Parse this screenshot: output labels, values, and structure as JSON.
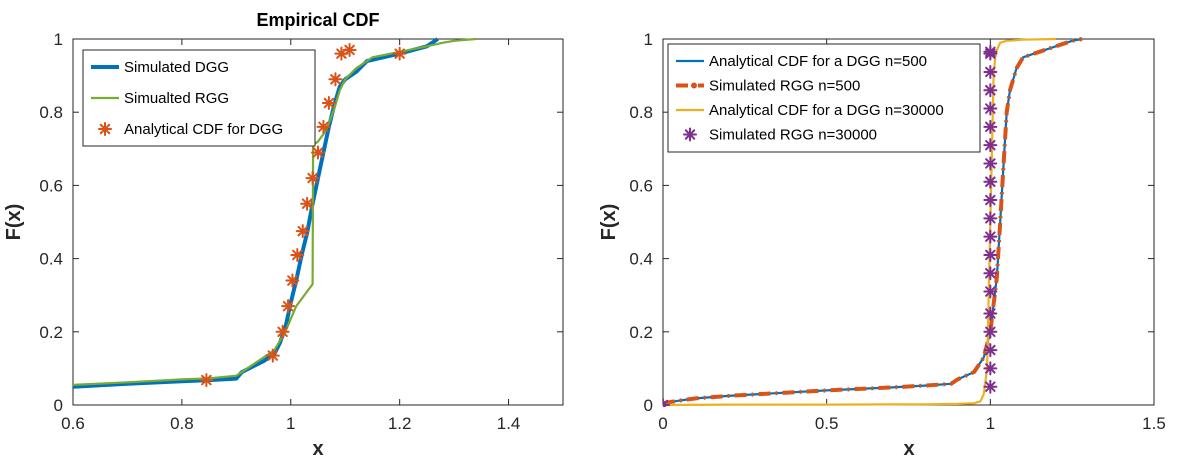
{
  "chart_data": [
    {
      "type": "line",
      "title": "Empirical CDF",
      "xlabel": "x",
      "ylabel": "F(x)",
      "xlim": [
        0.6,
        1.5
      ],
      "ylim": [
        0,
        1
      ],
      "xticks": [
        0.6,
        0.8,
        1,
        1.2,
        1.4
      ],
      "xtick_labels": [
        "0.6",
        "0.8",
        "1",
        "1.2",
        "1.4"
      ],
      "yticks": [
        0,
        0.2,
        0.4,
        0.6,
        0.8,
        1
      ],
      "ytick_labels": [
        "0",
        "0.2",
        "0.4",
        "0.6",
        "0.8",
        "1"
      ],
      "grid": false,
      "legend_position": "top-left",
      "series": [
        {
          "name": "Simulated DGG",
          "color": "#0072BD",
          "style": "thick-line",
          "x": [
            0.6,
            0.7,
            0.8,
            0.85,
            0.9,
            0.91,
            0.95,
            0.97,
            0.98,
            0.99,
            1.0,
            1.01,
            1.02,
            1.03,
            1.04,
            1.05,
            1.06,
            1.07,
            1.08,
            1.09,
            1.1,
            1.12,
            1.14,
            1.2,
            1.25,
            1.27
          ],
          "y": [
            0.05,
            0.058,
            0.065,
            0.068,
            0.072,
            0.09,
            0.12,
            0.14,
            0.17,
            0.21,
            0.28,
            0.34,
            0.41,
            0.47,
            0.55,
            0.62,
            0.69,
            0.76,
            0.82,
            0.87,
            0.89,
            0.91,
            0.94,
            0.96,
            0.98,
            1.0
          ]
        },
        {
          "name": "Simualted RGG",
          "color": "#77AC30",
          "style": "line",
          "x": [
            0.6,
            0.7,
            0.8,
            0.85,
            0.9,
            0.92,
            0.95,
            0.97,
            0.99,
            1.01,
            1.03,
            1.04,
            1.041,
            1.05,
            1.06,
            1.07,
            1.08,
            1.09,
            1.1,
            1.12,
            1.15,
            1.2,
            1.25,
            1.28,
            1.3,
            1.34
          ],
          "y": [
            0.055,
            0.062,
            0.07,
            0.073,
            0.08,
            0.1,
            0.13,
            0.15,
            0.2,
            0.27,
            0.31,
            0.33,
            0.71,
            0.72,
            0.74,
            0.77,
            0.81,
            0.86,
            0.89,
            0.92,
            0.95,
            0.965,
            0.98,
            0.99,
            0.995,
            1.0
          ]
        },
        {
          "name": "Analytical CDF for DGG",
          "color": "#D95319",
          "style": "asterisk-markers",
          "x": [
            0.845,
            0.967,
            0.985,
            0.995,
            1.003,
            1.012,
            1.022,
            1.03,
            1.04,
            1.05,
            1.06,
            1.07,
            1.082,
            1.093,
            1.108,
            1.2
          ],
          "y": [
            0.068,
            0.135,
            0.2,
            0.27,
            0.34,
            0.41,
            0.475,
            0.55,
            0.62,
            0.69,
            0.76,
            0.825,
            0.89,
            0.96,
            0.97,
            0.96
          ]
        }
      ]
    },
    {
      "type": "line",
      "title": "",
      "xlabel": "x",
      "ylabel": "F(x)",
      "xlim": [
        0,
        1.5
      ],
      "ylim": [
        0,
        1
      ],
      "xticks": [
        0,
        0.5,
        1,
        1.5
      ],
      "xtick_labels": [
        "0",
        "0.5",
        "1",
        "1.5"
      ],
      "yticks": [
        0,
        0.2,
        0.4,
        0.6,
        0.8,
        1
      ],
      "ytick_labels": [
        "0",
        "0.2",
        "0.4",
        "0.6",
        "0.8",
        "1"
      ],
      "grid": false,
      "legend_position": "top-left",
      "series": [
        {
          "name": "Analytical CDF for a DGG n=500",
          "color": "#0072BD",
          "style": "line",
          "x": [
            0,
            0.05,
            0.1,
            0.2,
            0.3,
            0.4,
            0.5,
            0.6,
            0.7,
            0.8,
            0.88,
            0.9,
            0.95,
            0.98,
            1.0,
            1.02,
            1.03,
            1.04,
            1.05,
            1.06,
            1.08,
            1.1,
            1.15,
            1.2,
            1.25,
            1.28
          ],
          "y": [
            0.005,
            0.012,
            0.018,
            0.025,
            0.03,
            0.035,
            0.04,
            0.044,
            0.048,
            0.053,
            0.058,
            0.07,
            0.09,
            0.13,
            0.2,
            0.35,
            0.5,
            0.65,
            0.8,
            0.86,
            0.92,
            0.95,
            0.965,
            0.98,
            0.995,
            1.0
          ]
        },
        {
          "name": "Simulated RGG n=500",
          "color": "#D95319",
          "style": "thick-dash-dot",
          "x": [
            0,
            0.05,
            0.1,
            0.2,
            0.3,
            0.4,
            0.5,
            0.6,
            0.7,
            0.8,
            0.88,
            0.9,
            0.95,
            0.98,
            1.0,
            1.02,
            1.03,
            1.04,
            1.05,
            1.06,
            1.08,
            1.1,
            1.15,
            1.2,
            1.25,
            1.28
          ],
          "y": [
            0.005,
            0.012,
            0.018,
            0.025,
            0.03,
            0.035,
            0.04,
            0.044,
            0.048,
            0.053,
            0.058,
            0.07,
            0.09,
            0.13,
            0.2,
            0.35,
            0.5,
            0.65,
            0.8,
            0.86,
            0.92,
            0.95,
            0.965,
            0.98,
            0.995,
            1.0
          ]
        },
        {
          "name": "Analytical CDF for a DGG n=30000",
          "color": "#EDB120",
          "style": "line",
          "x": [
            0,
            0.2,
            0.5,
            0.8,
            0.9,
            0.95,
            0.97,
            0.98,
            0.99,
            0.995,
            1.0,
            1.005,
            1.01,
            1.015,
            1.02,
            1.03,
            1.05,
            1.1,
            1.2
          ],
          "y": [
            0.0,
            0.001,
            0.001,
            0.002,
            0.003,
            0.005,
            0.01,
            0.03,
            0.1,
            0.3,
            0.5,
            0.7,
            0.9,
            0.95,
            0.97,
            0.99,
            0.995,
            0.998,
            1.0
          ]
        },
        {
          "name": "Simulated RGG n=30000",
          "color": "#7E2F8E",
          "style": "asterisk-markers",
          "x": [
            0,
            1.0,
            1.0,
            1.0,
            1.0,
            1.0,
            1.0,
            1.0,
            1.0,
            1.0,
            1.0,
            1.0,
            1.0,
            1.0,
            1.0,
            1.0,
            1.0,
            1.0,
            1.0,
            1.0,
            1.0
          ],
          "y": [
            0.0,
            0.05,
            0.1,
            0.15,
            0.2,
            0.25,
            0.31,
            0.36,
            0.41,
            0.46,
            0.51,
            0.56,
            0.61,
            0.66,
            0.71,
            0.76,
            0.81,
            0.86,
            0.91,
            0.96,
            0.965
          ]
        }
      ]
    }
  ]
}
